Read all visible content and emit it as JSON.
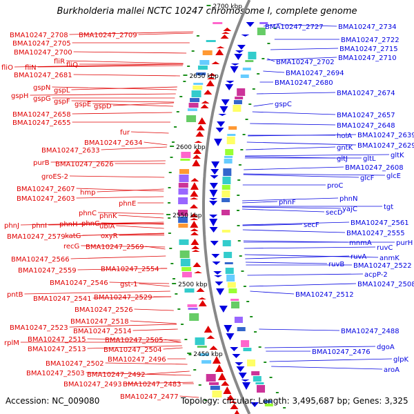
{
  "title": "Burkholderia mallei NCTC 10247 chromosome I, complete genome",
  "footer": {
    "accession": "Accession: NC_009080",
    "summary": "Topology: circular; Length: 3,495,687 bp; Genes: 3,325"
  },
  "colors": {
    "forward": "#e00000",
    "reverse": "#0000e0",
    "backbone": "#888888",
    "tick": "#1a8f1a"
  },
  "ruler": [
    {
      "label": "2700 kbp"
    },
    {
      "label": "2650 kbp"
    },
    {
      "label": "2600 kbp"
    },
    {
      "label": "2550 kbp"
    },
    {
      "label": "2500 kbp"
    },
    {
      "label": "2450 kbp"
    }
  ],
  "left_labels": [
    {
      "text": "BMA10247_2708"
    },
    {
      "text": "BMA10247_2709"
    },
    {
      "text": "BMA10247_2705"
    },
    {
      "text": "BMA10247_2700"
    },
    {
      "text": "fliR"
    },
    {
      "text": "fliO"
    },
    {
      "text": "fliN"
    },
    {
      "text": "fliQ"
    },
    {
      "text": "BMA10247_2681"
    },
    {
      "text": "gspN"
    },
    {
      "text": "gspL"
    },
    {
      "text": "gspH"
    },
    {
      "text": "gspG"
    },
    {
      "text": "gspF"
    },
    {
      "text": "gspE"
    },
    {
      "text": "gspD"
    },
    {
      "text": "BMA10247_2658"
    },
    {
      "text": "BMA10247_2655"
    },
    {
      "text": "fur"
    },
    {
      "text": "BMA10247_2634"
    },
    {
      "text": "BMA10247_2633"
    },
    {
      "text": "purB"
    },
    {
      "text": "BMA10247_2626"
    },
    {
      "text": "groES-2"
    },
    {
      "text": "BMA10247_2607"
    },
    {
      "text": "hmp"
    },
    {
      "text": "BMA10247_2603"
    },
    {
      "text": "phnE"
    },
    {
      "text": "phnC"
    },
    {
      "text": "phnK"
    },
    {
      "text": "phnJ"
    },
    {
      "text": "phnI"
    },
    {
      "text": "phnH"
    },
    {
      "text": "phnG"
    },
    {
      "text": "ubiA"
    },
    {
      "text": "BMA10247_2579"
    },
    {
      "text": "katG"
    },
    {
      "text": "oxyR"
    },
    {
      "text": "recG"
    },
    {
      "text": "BMA10247_2569"
    },
    {
      "text": "BMA10247_2566"
    },
    {
      "text": "BMA10247_2559"
    },
    {
      "text": "BMA10247_2554"
    },
    {
      "text": "BMA10247_2546"
    },
    {
      "text": "gst-1"
    },
    {
      "text": "pntB"
    },
    {
      "text": "BMA10247_2541"
    },
    {
      "text": "BMA10247_2529"
    },
    {
      "text": "BMA10247_2526"
    },
    {
      "text": "BMA10247_2518"
    },
    {
      "text": "BMA10247_2523"
    },
    {
      "text": "BMA10247_2514"
    },
    {
      "text": "rplM"
    },
    {
      "text": "BMA10247_2515"
    },
    {
      "text": "BMA10247_2505"
    },
    {
      "text": "BMA10247_2513"
    },
    {
      "text": "BMA10247_2504"
    },
    {
      "text": "BMA10247_2496"
    },
    {
      "text": "BMA10247_2502"
    },
    {
      "text": "BMA10247_2503"
    },
    {
      "text": "BMA10247_2492"
    },
    {
      "text": "BMA10247_2493"
    },
    {
      "text": "BMA10247_2483"
    },
    {
      "text": "BMA10247_2477"
    }
  ],
  "right_labels": [
    {
      "text": "BMA10247_2727"
    },
    {
      "text": "BMA10247_2734"
    },
    {
      "text": "BMA10247_2722"
    },
    {
      "text": "BMA10247_2715"
    },
    {
      "text": "BMA10247_2710"
    },
    {
      "text": "BMA10247_2702"
    },
    {
      "text": "BMA10247_2694"
    },
    {
      "text": "BMA10247_2680"
    },
    {
      "text": "BMA10247_2674"
    },
    {
      "text": "gspC"
    },
    {
      "text": "BMA10247_2657"
    },
    {
      "text": "BMA10247_2648"
    },
    {
      "text": "holA"
    },
    {
      "text": "BMA10247_2639"
    },
    {
      "text": "gntK"
    },
    {
      "text": "BMA10247_2629"
    },
    {
      "text": "gltJ"
    },
    {
      "text": "gltL"
    },
    {
      "text": "gltK"
    },
    {
      "text": "BMA10247_2608"
    },
    {
      "text": "glcF"
    },
    {
      "text": "glcE"
    },
    {
      "text": "proC"
    },
    {
      "text": "phnF"
    },
    {
      "text": "phnN"
    },
    {
      "text": "secD"
    },
    {
      "text": "yajC"
    },
    {
      "text": "tgt"
    },
    {
      "text": "secF"
    },
    {
      "text": "BMA10247_2561"
    },
    {
      "text": "BMA10247_2555"
    },
    {
      "text": "mnmA"
    },
    {
      "text": "purH"
    },
    {
      "text": "ruvC"
    },
    {
      "text": "ruvA"
    },
    {
      "text": "anmK"
    },
    {
      "text": "ruvB"
    },
    {
      "text": "BMA10247_2522"
    },
    {
      "text": "acpP-2"
    },
    {
      "text": "BMA10247_2508"
    },
    {
      "text": "BMA10247_2512"
    },
    {
      "text": "BMA10247_2488"
    },
    {
      "text": "BMA10247_2476"
    },
    {
      "text": "dgoA"
    },
    {
      "text": "glpK"
    },
    {
      "text": "aroA"
    }
  ]
}
